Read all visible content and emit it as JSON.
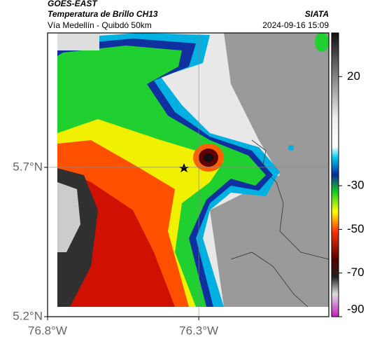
{
  "header": {
    "title": "GOES-EAST",
    "subtitle": "Temperatura de Brillo CH13",
    "route": "Vía Medellín - Quibdó 50km",
    "source": "SIATA",
    "timestamp": "2024-09-16 15:09"
  },
  "map": {
    "xlim": [
      -76.8,
      -75.87
    ],
    "ylim": [
      5.2,
      6.15
    ],
    "xticks": [
      {
        "value": -76.8,
        "label": "76.8°W"
      },
      {
        "value": -76.3,
        "label": "76.3°W"
      }
    ],
    "yticks": [
      {
        "value": 5.2,
        "label": "5.2°N"
      },
      {
        "value": 5.7,
        "label": "5.7°N"
      }
    ]
  },
  "colorbar": {
    "lim": [
      -90,
      40
    ],
    "ticks": [
      20,
      -30,
      -50,
      -70,
      -90
    ]
  }
}
